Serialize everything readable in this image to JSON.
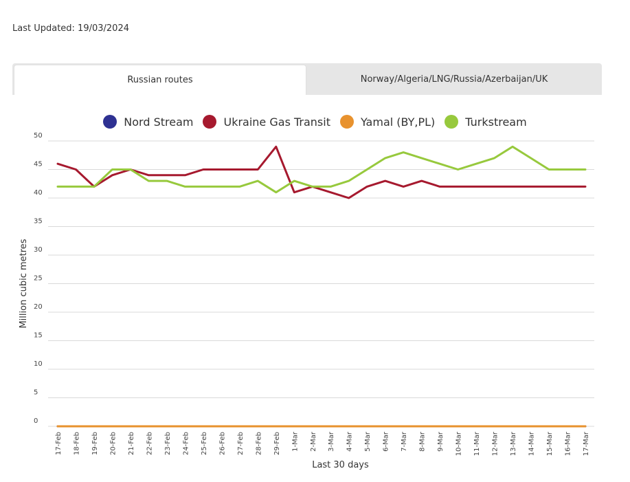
{
  "last_updated": "Last Updated: 19/03/2024",
  "tabs": [
    {
      "label": "Russian routes",
      "active": true
    },
    {
      "label": "Norway/Algeria/LNG/Russia/Azerbaijan/UK",
      "active": false
    }
  ],
  "chart_data": {
    "type": "line",
    "title": "",
    "xlabel": "Last 30 days",
    "ylabel": "Million cubic metres",
    "ylim": [
      0,
      50
    ],
    "yticks": [
      0,
      5,
      10,
      15,
      20,
      25,
      30,
      35,
      40,
      45,
      50
    ],
    "grid": true,
    "legend_position": "top",
    "x": [
      "17-Feb",
      "18-Feb",
      "19-Feb",
      "20-Feb",
      "21-Feb",
      "22-Feb",
      "23-Feb",
      "24-Feb",
      "25-Feb",
      "26-Feb",
      "27-Feb",
      "28-Feb",
      "29-Feb",
      "1-Mar",
      "2-Mar",
      "3-Mar",
      "4-Mar",
      "5-Mar",
      "6-Mar",
      "7-Mar",
      "8-Mar",
      "9-Mar",
      "10-Mar",
      "11-Mar",
      "12-Mar",
      "13-Mar",
      "14-Mar",
      "15-Mar",
      "16-Mar",
      "17-Mar"
    ],
    "series": [
      {
        "name": "Nord Stream",
        "color": "#2e3192",
        "values": [
          0,
          0,
          0,
          0,
          0,
          0,
          0,
          0,
          0,
          0,
          0,
          0,
          0,
          0,
          0,
          0,
          0,
          0,
          0,
          0,
          0,
          0,
          0,
          0,
          0,
          0,
          0,
          0,
          0,
          0
        ]
      },
      {
        "name": "Ukraine Gas Transit",
        "color": "#a6192e",
        "values": [
          46,
          45,
          42,
          44,
          45,
          44,
          44,
          44,
          45,
          45,
          45,
          45,
          49,
          41,
          42,
          41,
          40,
          42,
          43,
          42,
          43,
          42,
          42,
          42,
          42,
          42,
          42,
          42,
          42,
          42
        ]
      },
      {
        "name": "Yamal (BY,PL)",
        "color": "#e8922e",
        "values": [
          0,
          0,
          0,
          0,
          0,
          0,
          0,
          0,
          0,
          0,
          0,
          0,
          0,
          0,
          0,
          0,
          0,
          0,
          0,
          0,
          0,
          0,
          0,
          0,
          0,
          0,
          0,
          0,
          0,
          0
        ]
      },
      {
        "name": "Turkstream",
        "color": "#97c93d",
        "values": [
          42,
          42,
          42,
          45,
          45,
          43,
          43,
          42,
          42,
          42,
          42,
          43,
          41,
          43,
          42,
          42,
          43,
          45,
          47,
          48,
          47,
          46,
          45,
          46,
          47,
          49,
          47,
          45,
          45,
          45
        ]
      }
    ]
  }
}
